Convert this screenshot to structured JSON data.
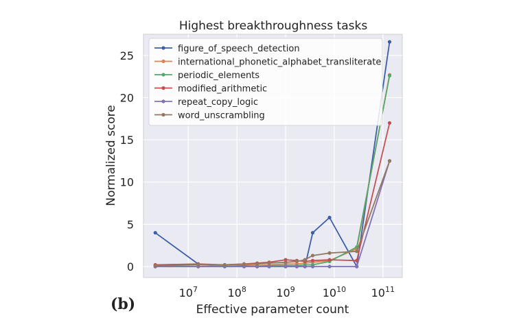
{
  "panel_label": "(b)",
  "chart_data": {
    "type": "line",
    "title": "Highest breakthroughness tasks",
    "xlabel": "Effective parameter count",
    "ylabel": "Normalized score",
    "x_scale": "log",
    "xlim": [
      1200000.0,
      250000000000.0
    ],
    "ylim": [
      -1.3,
      27.5
    ],
    "x_ticks": [
      {
        "value": 10000000.0,
        "base": "10",
        "exp": "7"
      },
      {
        "value": 100000000.0,
        "base": "10",
        "exp": "8"
      },
      {
        "value": 1000000000.0,
        "base": "10",
        "exp": "9"
      },
      {
        "value": 10000000000.0,
        "base": "10",
        "exp": "10"
      },
      {
        "value": 100000000000.0,
        "base": "10",
        "exp": "11"
      }
    ],
    "y_ticks": [
      0,
      5,
      10,
      15,
      20,
      25
    ],
    "grid": true,
    "legend_position": "top-left",
    "series": [
      {
        "name": "figure_of_speech_detection",
        "color": "#3a5fa8",
        "points": [
          [
            2100000.0,
            4.0
          ],
          [
            16000000.0,
            0.3
          ],
          [
            56000000.0,
            0.1
          ],
          [
            140000000.0,
            0.1
          ],
          [
            260000000.0,
            0.0
          ],
          [
            460000000.0,
            0.0
          ],
          [
            1000000000.0,
            0.0
          ],
          [
            1700000000.0,
            0.0
          ],
          [
            2500000000.0,
            0.0
          ],
          [
            3600000000.0,
            4.0
          ],
          [
            8000000000.0,
            5.8
          ],
          [
            29000000000.0,
            0.0
          ],
          [
            137000000000.0,
            26.6
          ]
        ]
      },
      {
        "name": "international_phonetic_alphabet_transliterate",
        "color": "#dd8452",
        "points": [
          [
            2100000.0,
            0.0
          ],
          [
            16000000.0,
            0.0
          ],
          [
            56000000.0,
            0.1
          ],
          [
            140000000.0,
            0.2
          ],
          [
            260000000.0,
            0.1
          ],
          [
            460000000.0,
            0.2
          ],
          [
            1000000000.0,
            0.3
          ],
          [
            1700000000.0,
            0.3
          ],
          [
            2500000000.0,
            0.4
          ],
          [
            3600000000.0,
            0.5
          ],
          [
            8000000000.0,
            0.7
          ],
          [
            29000000000.0,
            2.1
          ],
          [
            137000000000.0,
            22.7
          ]
        ]
      },
      {
        "name": "periodic_elements",
        "color": "#55a868",
        "points": [
          [
            2100000.0,
            0.0
          ],
          [
            16000000.0,
            0.0
          ],
          [
            56000000.0,
            0.0
          ],
          [
            140000000.0,
            0.0
          ],
          [
            260000000.0,
            0.0
          ],
          [
            460000000.0,
            0.1
          ],
          [
            1000000000.0,
            0.1
          ],
          [
            1700000000.0,
            0.1
          ],
          [
            2500000000.0,
            0.2
          ],
          [
            3600000000.0,
            0.2
          ],
          [
            8000000000.0,
            0.6
          ],
          [
            29000000000.0,
            2.3
          ],
          [
            137000000000.0,
            22.6
          ]
        ]
      },
      {
        "name": "modified_arithmetic",
        "color": "#c44e52",
        "points": [
          [
            2100000.0,
            0.2
          ],
          [
            16000000.0,
            0.3
          ],
          [
            56000000.0,
            0.2
          ],
          [
            140000000.0,
            0.3
          ],
          [
            260000000.0,
            0.4
          ],
          [
            460000000.0,
            0.5
          ],
          [
            1000000000.0,
            0.8
          ],
          [
            1700000000.0,
            0.7
          ],
          [
            2500000000.0,
            0.6
          ],
          [
            3600000000.0,
            0.7
          ],
          [
            8000000000.0,
            0.8
          ],
          [
            29000000000.0,
            0.7
          ],
          [
            137000000000.0,
            17.0
          ]
        ]
      },
      {
        "name": "repeat_copy_logic",
        "color": "#8172b3",
        "points": [
          [
            2100000.0,
            0.0
          ],
          [
            16000000.0,
            0.0
          ],
          [
            56000000.0,
            0.0
          ],
          [
            140000000.0,
            0.0
          ],
          [
            260000000.0,
            0.0
          ],
          [
            460000000.0,
            0.0
          ],
          [
            1000000000.0,
            0.0
          ],
          [
            1700000000.0,
            0.0
          ],
          [
            2500000000.0,
            0.0
          ],
          [
            3600000000.0,
            0.0
          ],
          [
            8000000000.0,
            0.0
          ],
          [
            29000000000.0,
            0.0
          ],
          [
            137000000000.0,
            12.5
          ]
        ]
      },
      {
        "name": "word_unscrambling",
        "color": "#937860",
        "points": [
          [
            2100000.0,
            0.1
          ],
          [
            16000000.0,
            0.2
          ],
          [
            56000000.0,
            0.2
          ],
          [
            140000000.0,
            0.3
          ],
          [
            260000000.0,
            0.3
          ],
          [
            460000000.0,
            0.4
          ],
          [
            1000000000.0,
            0.5
          ],
          [
            1700000000.0,
            0.6
          ],
          [
            2500000000.0,
            0.8
          ],
          [
            3600000000.0,
            1.3
          ],
          [
            8000000000.0,
            1.6
          ],
          [
            29000000000.0,
            1.8
          ],
          [
            137000000000.0,
            12.5
          ]
        ]
      }
    ]
  }
}
